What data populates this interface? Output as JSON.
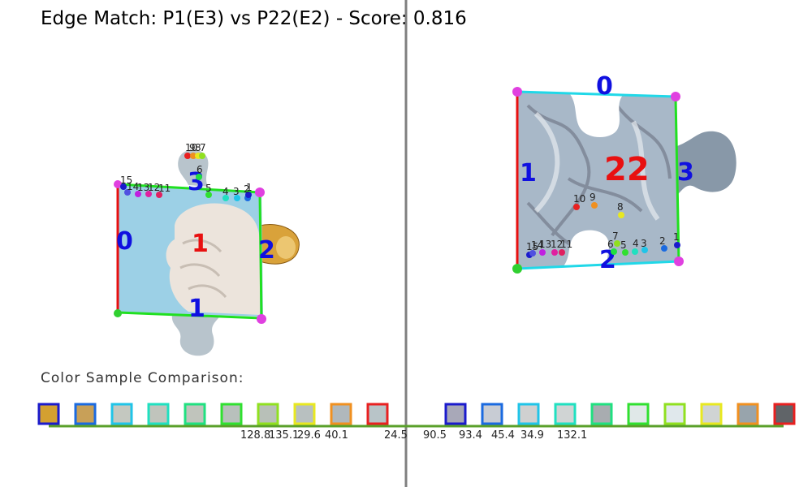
{
  "title": "Edge Match: P1(E3) vs P22(E2) - Score: 0.816",
  "piece_left": {
    "id_label": "1",
    "edge_labels": [
      "0",
      "1",
      "2",
      "3"
    ],
    "sample_indices": [
      "15",
      "14",
      "13",
      "12",
      "11",
      "6",
      "5",
      "4",
      "3",
      "2",
      "1",
      "10",
      "9",
      "8",
      "7"
    ]
  },
  "piece_right": {
    "id_label": "22",
    "edge_labels": [
      "0",
      "1",
      "2",
      "3"
    ],
    "sample_indices": [
      "15",
      "14",
      "13",
      "12",
      "11",
      "10",
      "9",
      "8",
      "7",
      "6",
      "5",
      "4",
      "3",
      "2",
      "1"
    ]
  },
  "color_section_label": "Color Sample Comparison:",
  "left_swatches": [
    {
      "fill": "#d4a030",
      "border": "#1a1acc"
    },
    {
      "fill": "#c8a058",
      "border": "#1a6ae0"
    },
    {
      "fill": "#c4c8c0",
      "border": "#20c4e8"
    },
    {
      "fill": "#c0c4bc",
      "border": "#20e0c0"
    },
    {
      "fill": "#c0c4bc",
      "border": "#20e080"
    },
    {
      "fill": "#b8c0bc",
      "border": "#30e030"
    },
    {
      "fill": "#b8c0b8",
      "border": "#90e020"
    },
    {
      "fill": "#b8c0c0",
      "border": "#e8e820"
    },
    {
      "fill": "#b0b8bc",
      "border": "#f09020"
    },
    {
      "fill": "#b8c4c8",
      "border": "#e82020"
    }
  ],
  "right_swatches": [
    {
      "fill": "#a8a8b8",
      "border": "#1a1acc"
    },
    {
      "fill": "#c8ccd4",
      "border": "#1a6ae0"
    },
    {
      "fill": "#d0d0d0",
      "border": "#20c4e8"
    },
    {
      "fill": "#d0d4d4",
      "border": "#20e0c0"
    },
    {
      "fill": "#a8acb0",
      "border": "#20e080"
    },
    {
      "fill": "#e0e8e8",
      "border": "#30e030"
    },
    {
      "fill": "#e0e8ec",
      "border": "#90e020"
    },
    {
      "fill": "#d0d4d4",
      "border": "#e8e820"
    },
    {
      "fill": "#98a4ac",
      "border": "#f09020"
    },
    {
      "fill": "#606468",
      "border": "#e82020"
    }
  ],
  "distances": [
    "128.8",
    "135.1",
    "29.6",
    "40.1",
    "24.5",
    "90.5",
    "93.4",
    "45.4",
    "34.9",
    "132.1"
  ]
}
